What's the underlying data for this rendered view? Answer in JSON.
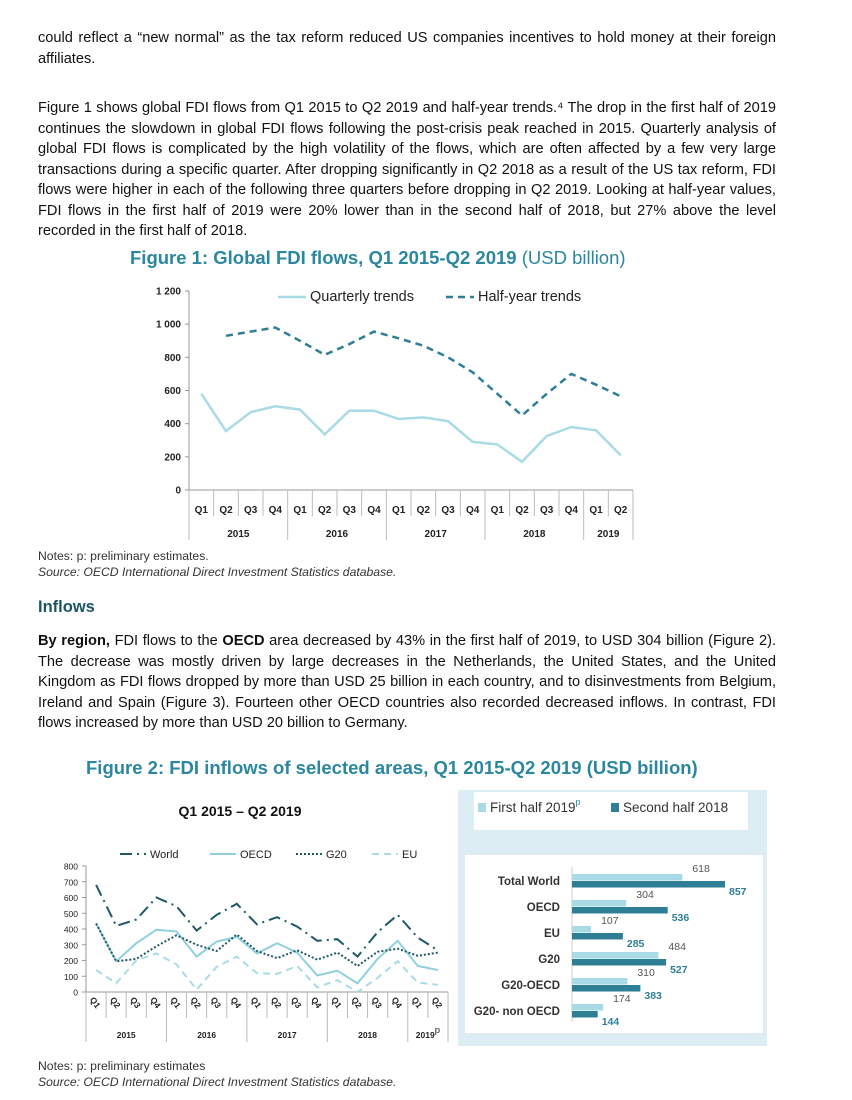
{
  "paragraphs": [
    "could reflect a “new normal” as the tax reform reduced US companies incentives to hold money at their foreign affiliates.",
    "Figure 1 shows global FDI flows from Q1 2015 to Q2 2019 and half-year trends.⁴ The drop in the first half of 2019 continues the slowdown in global FDI flows following the post-crisis peak reached in 2015. Quarterly analysis of global FDI flows is complicated by the high volatility of the flows, which are often affected by a few very large transactions during a specific quarter. After dropping significantly in Q2 2018 as a result of the US tax reform, FDI flows were higher in each of the following three quarters before dropping in Q2 2019. Looking at half-year values, FDI flows in the first half of 2019 were 20% lower than in the second half of 2018, but 27% above the level recorded in the first half of 2018."
  ],
  "figure1": {
    "title": "Figure 1: Global FDI flows, Q1 2015-Q2 2019",
    "unit": "(USD billion)",
    "notes": "Notes: p: preliminary estimates.",
    "source": "Source: OECD International Direct Investment Statistics database."
  },
  "inflows": {
    "heading": "Inflows",
    "lead": "By region,",
    "t1": " FDI flows to the ",
    "oecd": "OECD",
    "t2": " area decreased by 43% in the first half of 2019, to USD 304 billion (Figure 2). The decrease was mostly driven by large decreases in the Netherlands, the United States, and the United Kingdom as FDI flows dropped by more than USD 25 billion in each country, and to disinvestments from Belgium, Ireland and Spain (Figure 3). Fourteen other OECD countries also recorded decreased inflows. In contrast, FDI flows increased by more than USD 20 billion to Germany."
  },
  "figure2": {
    "title": "Figure 2: FDI inflows of selected areas, Q1 2015-Q2 2019 (USD billion)",
    "notes": "Notes: p: preliminary estimates",
    "source": "Source: OECD International Direct Investment Statistics database."
  },
  "colors": {
    "accent": "#2b87a0",
    "light": "#a8dbe6",
    "dark_teal": "#2e7f96",
    "navy_teal": "#1f5866",
    "panel_bg": "#dceef4"
  },
  "chart_data": [
    {
      "type": "line",
      "ylim": [
        0,
        1200
      ],
      "yticks": [
        "0",
        "200",
        "400",
        "600",
        "800",
        "1 000",
        "1 200"
      ],
      "ytick_values": [
        0,
        200,
        400,
        600,
        800,
        1000,
        1200
      ],
      "categories": [
        "Q1",
        "Q2",
        "Q3",
        "Q4",
        "Q1",
        "Q2",
        "Q3",
        "Q4",
        "Q1",
        "Q2",
        "Q3",
        "Q4",
        "Q1",
        "Q2",
        "Q3",
        "Q4",
        "Q1",
        "Q2"
      ],
      "years": [
        {
          "label": "2015",
          "span": 4
        },
        {
          "label": "2016",
          "span": 4
        },
        {
          "label": "2017",
          "span": 4
        },
        {
          "label": "2018",
          "span": 4
        },
        {
          "label": "2019",
          "span": 2
        }
      ],
      "legend": "top-right",
      "series": [
        {
          "name": "Quarterly trends",
          "style": "solid",
          "color": "#a8dbe6",
          "values": [
            580,
            355,
            470,
            505,
            485,
            335,
            478,
            478,
            428,
            438,
            415,
            290,
            275,
            170,
            325,
            380,
            360,
            210
          ]
        },
        {
          "name": "Half-year trends",
          "style": "dashed",
          "color": "#2e7f96",
          "values": [
            null,
            930,
            955,
            980,
            900,
            815,
            880,
            955,
            915,
            870,
            800,
            710,
            580,
            450,
            580,
            700,
            635,
            565
          ]
        }
      ]
    },
    {
      "type": "line",
      "title": "Q1 2015 – Q2 2019",
      "ylim": [
        0,
        800
      ],
      "yticks": [
        "0",
        "100",
        "200",
        "300",
        "400",
        "500",
        "600",
        "700",
        "800"
      ],
      "ytick_values": [
        0,
        100,
        200,
        300,
        400,
        500,
        600,
        700,
        800
      ],
      "categories": [
        "Q1",
        "Q2",
        "Q3",
        "Q4",
        "Q1",
        "Q2",
        "Q3",
        "Q4",
        "Q1",
        "Q2",
        "Q3",
        "Q4",
        "Q1",
        "Q2",
        "Q3",
        "Q4",
        "Q1",
        "Q2"
      ],
      "years": [
        {
          "label": "2015",
          "span": 4
        },
        {
          "label": "2016",
          "span": 4
        },
        {
          "label": "2017",
          "span": 4
        },
        {
          "label": "2018",
          "span": 4
        },
        {
          "label": "2019",
          "span": 2,
          "sup": "p"
        }
      ],
      "legend": "top",
      "series": [
        {
          "name": "World",
          "style": "dashdot",
          "color": "#1f5866",
          "values": [
            680,
            420,
            460,
            600,
            545,
            390,
            490,
            560,
            430,
            475,
            415,
            325,
            335,
            225,
            380,
            490,
            345,
            265
          ]
        },
        {
          "name": "OECD",
          "style": "solid",
          "color": "#8fd0e0",
          "values": [
            435,
            195,
            310,
            395,
            385,
            225,
            320,
            350,
            245,
            310,
            250,
            105,
            135,
            55,
            210,
            325,
            165,
            140
          ]
        },
        {
          "name": "G20",
          "style": "dotted",
          "color": "#1f5866",
          "values": [
            435,
            195,
            210,
            290,
            360,
            300,
            260,
            365,
            260,
            215,
            265,
            205,
            250,
            165,
            255,
            275,
            230,
            250
          ]
        },
        {
          "name": "EU",
          "style": "dashed",
          "color": "#a8dbe6",
          "values": [
            140,
            55,
            200,
            245,
            175,
            15,
            160,
            225,
            120,
            115,
            165,
            30,
            75,
            0,
            90,
            195,
            60,
            45
          ]
        }
      ]
    },
    {
      "type": "bar",
      "orientation": "horizontal",
      "categories": [
        "Total World",
        "OECD",
        "EU",
        "G20",
        "G20-OECD",
        "G20- non OECD"
      ],
      "legend": "top",
      "series": [
        {
          "name": "First half 2019",
          "sup": "p",
          "color": "#a8dbe6",
          "values": [
            618,
            304,
            107,
            484,
            310,
            174
          ]
        },
        {
          "name": "Second half 2018",
          "color": "#2e7f96",
          "values": [
            857,
            536,
            285,
            527,
            383,
            144
          ]
        }
      ]
    }
  ]
}
